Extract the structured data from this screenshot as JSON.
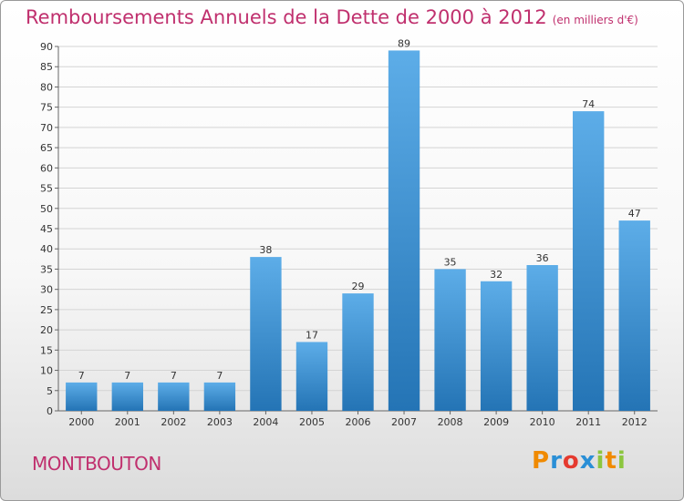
{
  "header": {
    "title": "Remboursements Annuels de la Dette de 2000 à 2012",
    "unit": "(en milliers d'€)"
  },
  "footer": {
    "commune": "MONTBOUTON",
    "logo": "Proxiti",
    "logo_colors": [
      "#f08a00",
      "#2a8fd6",
      "#e53a2f",
      "#2a8fd6",
      "#8cc63f",
      "#f08a00",
      "#8cc63f"
    ]
  },
  "colors": {
    "accent": "#c0306e",
    "bar_top": "#5dade8",
    "bar_bottom": "#2474b5"
  },
  "chart_data": {
    "type": "bar",
    "title": "Remboursements Annuels de la Dette de 2000 à 2012",
    "subtitle": "(en milliers d'€)",
    "categories": [
      "2000",
      "2001",
      "2002",
      "2003",
      "2004",
      "2005",
      "2006",
      "2007",
      "2008",
      "2009",
      "2010",
      "2011",
      "2012"
    ],
    "values": [
      7,
      7,
      7,
      7,
      38,
      17,
      29,
      89,
      35,
      32,
      36,
      74,
      47
    ],
    "ylim": [
      0,
      90
    ],
    "yticks": [
      0,
      5,
      10,
      15,
      20,
      25,
      30,
      35,
      40,
      45,
      50,
      55,
      60,
      65,
      70,
      75,
      80,
      85,
      90
    ],
    "grid": true,
    "data_labels": true
  }
}
